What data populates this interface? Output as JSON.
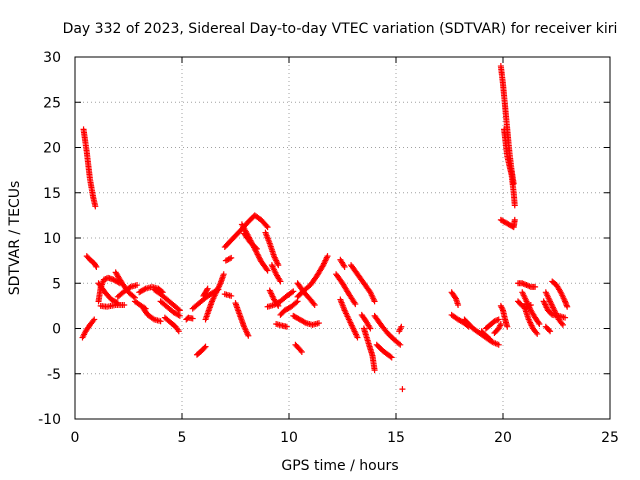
{
  "chart_data": {
    "type": "scatter",
    "title": "Day 332 of 2023, Sidereal Day-to-day VTEC variation (SDTVAR) for receiver kiri",
    "xlabel": "GPS time / hours",
    "ylabel": "SDTVAR / TECUs",
    "xlim": [
      0,
      25
    ],
    "ylim": [
      -10,
      30
    ],
    "xticks": [
      "0",
      "5",
      "10",
      "15",
      "20",
      "25"
    ],
    "yticks": [
      "-10",
      "-5",
      "0",
      "5",
      "10",
      "15",
      "20",
      "25",
      "30"
    ],
    "grid": true,
    "marker": "+",
    "color": "#ff0000",
    "tracks": [
      [
        [
          0.4,
          22.0
        ],
        [
          0.55,
          19.5
        ],
        [
          0.7,
          16.5
        ],
        [
          0.85,
          14.5
        ],
        [
          0.95,
          13.5
        ]
      ],
      [
        [
          0.35,
          -1.0
        ],
        [
          0.5,
          -0.3
        ],
        [
          0.7,
          0.4
        ],
        [
          0.9,
          1.0
        ]
      ],
      [
        [
          0.55,
          8.0
        ],
        [
          0.7,
          7.6
        ],
        [
          0.9,
          7.2
        ],
        [
          1.0,
          6.8
        ]
      ],
      [
        [
          1.1,
          3.0
        ],
        [
          1.2,
          4.5
        ],
        [
          1.35,
          5.4
        ],
        [
          1.55,
          5.6
        ],
        [
          1.8,
          5.4
        ],
        [
          2.1,
          5.0
        ]
      ],
      [
        [
          1.1,
          5.0
        ],
        [
          1.4,
          4.0
        ],
        [
          1.7,
          3.2
        ],
        [
          2.0,
          2.8
        ]
      ],
      [
        [
          1.2,
          2.5
        ],
        [
          1.5,
          2.4
        ],
        [
          1.9,
          2.6
        ],
        [
          2.3,
          2.6
        ]
      ],
      [
        [
          1.9,
          6.2
        ],
        [
          2.2,
          5.0
        ],
        [
          2.5,
          4.0
        ],
        [
          2.8,
          3.4
        ]
      ],
      [
        [
          2.0,
          3.5
        ],
        [
          2.3,
          4.1
        ],
        [
          2.6,
          4.6
        ],
        [
          2.9,
          4.8
        ]
      ],
      [
        [
          2.8,
          3.0
        ],
        [
          3.1,
          2.5
        ],
        [
          3.3,
          2.2
        ]
      ],
      [
        [
          3.0,
          4.0
        ],
        [
          3.3,
          4.4
        ],
        [
          3.6,
          4.6
        ],
        [
          3.9,
          4.4
        ],
        [
          4.1,
          4.0
        ]
      ],
      [
        [
          3.2,
          2.2
        ],
        [
          3.4,
          1.5
        ],
        [
          3.7,
          1.0
        ],
        [
          4.0,
          0.8
        ]
      ],
      [
        [
          3.7,
          4.3
        ],
        [
          4.0,
          3.8
        ],
        [
          4.3,
          3.2
        ],
        [
          4.6,
          2.6
        ],
        [
          4.9,
          2.0
        ]
      ],
      [
        [
          4.0,
          3.0
        ],
        [
          4.3,
          2.4
        ],
        [
          4.6,
          1.8
        ],
        [
          4.9,
          1.4
        ]
      ],
      [
        [
          4.2,
          1.2
        ],
        [
          4.5,
          0.6
        ],
        [
          4.7,
          0.2
        ],
        [
          4.85,
          -0.3
        ]
      ],
      [
        [
          5.2,
          1.0
        ],
        [
          5.3,
          1.2
        ],
        [
          5.5,
          1.1
        ]
      ],
      [
        [
          5.5,
          2.2
        ],
        [
          5.8,
          2.8
        ],
        [
          6.1,
          3.4
        ],
        [
          6.4,
          3.9
        ],
        [
          6.7,
          4.3
        ]
      ],
      [
        [
          6.0,
          3.6
        ],
        [
          6.1,
          4.0
        ],
        [
          6.2,
          4.4
        ]
      ],
      [
        [
          6.1,
          1.0
        ],
        [
          6.25,
          2.0
        ],
        [
          6.4,
          3.0
        ],
        [
          6.6,
          4.0
        ],
        [
          6.8,
          5.0
        ],
        [
          6.95,
          6.0
        ]
      ],
      [
        [
          5.7,
          -2.9
        ],
        [
          5.9,
          -2.5
        ],
        [
          6.1,
          -2.0
        ]
      ],
      [
        [
          7.05,
          7.5
        ],
        [
          7.3,
          7.8
        ]
      ],
      [
        [
          7.0,
          3.8
        ],
        [
          7.3,
          3.6
        ]
      ],
      [
        [
          7.0,
          9.0
        ],
        [
          7.4,
          10.0
        ],
        [
          7.8,
          11.0
        ],
        [
          8.1,
          11.8
        ],
        [
          8.4,
          12.5
        ],
        [
          8.7,
          12.0
        ],
        [
          9.0,
          11.2
        ]
      ],
      [
        [
          7.5,
          2.8
        ],
        [
          7.7,
          1.5
        ],
        [
          7.9,
          0.2
        ],
        [
          8.1,
          -0.8
        ]
      ],
      [
        [
          7.8,
          11.5
        ],
        [
          8.1,
          10.2
        ],
        [
          8.4,
          8.8
        ],
        [
          8.7,
          7.4
        ],
        [
          9.0,
          6.4
        ]
      ],
      [
        [
          7.9,
          10.5
        ],
        [
          8.2,
          9.5
        ],
        [
          8.5,
          8.8
        ]
      ],
      [
        [
          8.9,
          10.6
        ],
        [
          9.1,
          9.4
        ],
        [
          9.3,
          8.0
        ],
        [
          9.5,
          7.0
        ]
      ],
      [
        [
          9.1,
          4.2
        ],
        [
          9.3,
          3.2
        ],
        [
          9.5,
          2.5
        ]
      ],
      [
        [
          9.2,
          7.0
        ],
        [
          9.4,
          6.0
        ],
        [
          9.6,
          5.2
        ]
      ],
      [
        [
          9.0,
          2.4
        ],
        [
          9.3,
          2.6
        ],
        [
          9.6,
          3.0
        ],
        [
          9.9,
          3.6
        ],
        [
          10.2,
          4.1
        ]
      ],
      [
        [
          9.4,
          0.5
        ],
        [
          9.7,
          0.3
        ],
        [
          9.9,
          0.2
        ]
      ],
      [
        [
          9.6,
          1.5
        ],
        [
          9.8,
          2.0
        ],
        [
          10.1,
          2.4
        ],
        [
          10.4,
          3.0
        ]
      ],
      [
        [
          10.2,
          1.4
        ],
        [
          10.5,
          1.0
        ],
        [
          10.8,
          0.6
        ],
        [
          11.1,
          0.4
        ],
        [
          11.4,
          0.6
        ]
      ],
      [
        [
          10.4,
          3.5
        ],
        [
          10.7,
          4.2
        ],
        [
          11.0,
          4.8
        ],
        [
          11.3,
          5.8
        ],
        [
          11.6,
          7.0
        ],
        [
          11.8,
          8.0
        ]
      ],
      [
        [
          10.4,
          5.0
        ],
        [
          10.7,
          4.0
        ],
        [
          11.0,
          3.2
        ],
        [
          11.2,
          2.6
        ]
      ],
      [
        [
          10.3,
          -1.8
        ],
        [
          10.5,
          -2.3
        ],
        [
          10.6,
          -2.6
        ]
      ],
      [
        [
          12.2,
          6.0
        ],
        [
          12.5,
          5.0
        ],
        [
          12.8,
          3.8
        ],
        [
          13.1,
          2.7
        ]
      ],
      [
        [
          12.4,
          7.6
        ],
        [
          12.6,
          6.8
        ]
      ],
      [
        [
          12.9,
          7.0
        ],
        [
          13.2,
          6.0
        ],
        [
          13.5,
          5.0
        ],
        [
          13.8,
          4.0
        ],
        [
          14.0,
          3.0
        ]
      ],
      [
        [
          12.4,
          3.2
        ],
        [
          12.6,
          2.0
        ],
        [
          12.8,
          1.0
        ],
        [
          13.0,
          0.0
        ],
        [
          13.2,
          -1.0
        ]
      ],
      [
        [
          13.4,
          1.5
        ],
        [
          13.6,
          0.8
        ],
        [
          13.8,
          0.0
        ]
      ],
      [
        [
          13.5,
          0.0
        ],
        [
          13.7,
          -1.5
        ],
        [
          13.9,
          -3.0
        ],
        [
          14.0,
          -4.6
        ]
      ],
      [
        [
          14.1,
          -1.8
        ],
        [
          14.4,
          -2.5
        ],
        [
          14.8,
          -3.2
        ]
      ],
      [
        [
          14.0,
          1.4
        ],
        [
          14.3,
          0.4
        ],
        [
          14.6,
          -0.5
        ],
        [
          14.9,
          -1.2
        ],
        [
          15.2,
          -1.8
        ]
      ],
      [
        [
          15.15,
          -0.3
        ],
        [
          15.25,
          0.2
        ]
      ],
      [
        [
          15.3,
          -6.7
        ]
      ],
      [
        [
          17.6,
          4.0
        ],
        [
          17.8,
          3.3
        ],
        [
          17.9,
          2.6
        ]
      ],
      [
        [
          17.6,
          1.5
        ],
        [
          17.9,
          1.0
        ],
        [
          18.2,
          0.6
        ],
        [
          18.4,
          0.2
        ]
      ],
      [
        [
          18.2,
          1.0
        ],
        [
          18.4,
          0.5
        ],
        [
          18.6,
          0.0
        ],
        [
          18.9,
          -0.5
        ],
        [
          19.2,
          -1.0
        ],
        [
          19.5,
          -1.5
        ],
        [
          19.8,
          -1.8
        ]
      ],
      [
        [
          19.0,
          -0.3
        ],
        [
          19.2,
          -0.8
        ],
        [
          19.4,
          -1.2
        ]
      ],
      [
        [
          19.2,
          0.0
        ],
        [
          19.4,
          0.4
        ],
        [
          19.6,
          0.8
        ],
        [
          19.8,
          1.0
        ]
      ],
      [
        [
          19.6,
          -0.5
        ],
        [
          19.8,
          0.0
        ],
        [
          19.9,
          0.5
        ]
      ],
      [
        [
          19.9,
          2.5
        ],
        [
          20.0,
          2.0
        ],
        [
          20.1,
          1.0
        ],
        [
          20.2,
          0.2
        ]
      ],
      [
        [
          19.9,
          29.0
        ],
        [
          20.0,
          27.0
        ],
        [
          20.1,
          24.5
        ],
        [
          20.2,
          22.0
        ],
        [
          20.3,
          19.5
        ],
        [
          20.4,
          17.5
        ],
        [
          20.5,
          16.0
        ]
      ],
      [
        [
          20.05,
          22.0
        ],
        [
          20.2,
          19.0
        ],
        [
          20.4,
          17.0
        ],
        [
          20.5,
          15.0
        ],
        [
          20.55,
          13.6
        ]
      ],
      [
        [
          19.9,
          12.0
        ],
        [
          20.2,
          11.6
        ],
        [
          20.5,
          11.2
        ],
        [
          20.55,
          12.0
        ]
      ],
      [
        [
          20.7,
          3.0
        ],
        [
          20.9,
          2.5
        ],
        [
          21.1,
          2.4
        ],
        [
          21.3,
          2.6
        ]
      ],
      [
        [
          20.7,
          5.0
        ],
        [
          20.9,
          5.0
        ],
        [
          21.1,
          4.8
        ],
        [
          21.3,
          4.6
        ],
        [
          21.5,
          4.6
        ]
      ],
      [
        [
          20.9,
          4.0
        ],
        [
          21.1,
          3.0
        ],
        [
          21.3,
          2.0
        ],
        [
          21.5,
          1.2
        ],
        [
          21.7,
          0.5
        ]
      ],
      [
        [
          21.0,
          2.4
        ],
        [
          21.2,
          1.0
        ],
        [
          21.4,
          0.0
        ],
        [
          21.6,
          -0.6
        ]
      ],
      [
        [
          21.9,
          3.0
        ],
        [
          22.1,
          2.0
        ],
        [
          22.3,
          1.5
        ],
        [
          22.6,
          1.4
        ],
        [
          22.9,
          1.2
        ]
      ],
      [
        [
          22.0,
          4.0
        ],
        [
          22.2,
          3.0
        ],
        [
          22.4,
          2.0
        ],
        [
          22.6,
          1.0
        ],
        [
          22.8,
          0.4
        ]
      ],
      [
        [
          22.3,
          5.2
        ],
        [
          22.5,
          4.8
        ],
        [
          22.7,
          4.0
        ],
        [
          22.9,
          3.0
        ],
        [
          23.0,
          2.4
        ]
      ],
      [
        [
          22.0,
          0.2
        ],
        [
          22.2,
          -0.3
        ]
      ]
    ]
  }
}
